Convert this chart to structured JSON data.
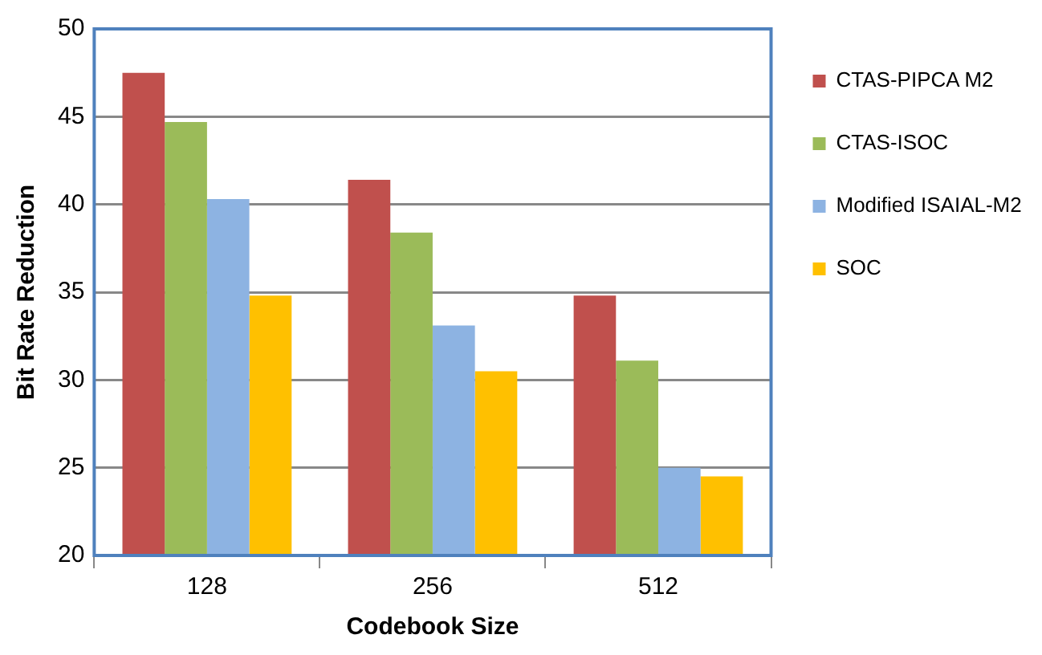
{
  "chart_data": {
    "type": "bar",
    "xlabel": "Codebook Size",
    "ylabel": "Bit Rate Reduction",
    "categories": [
      "128",
      "256",
      "512"
    ],
    "series": [
      {
        "name": "CTAS-PIPCA M2",
        "color": "#c0504d",
        "values": [
          47.5,
          41.4,
          34.8
        ]
      },
      {
        "name": "CTAS-ISOC",
        "color": "#9bbb59",
        "values": [
          44.7,
          38.4,
          31.1
        ]
      },
      {
        "name": "Modified ISAIAL-M2",
        "color": "#8db3e2",
        "values": [
          40.3,
          33.1,
          25.0
        ]
      },
      {
        "name": "SOC",
        "color": "#ffc000",
        "values": [
          34.8,
          30.5,
          24.5
        ]
      }
    ],
    "ylim": [
      20,
      50
    ],
    "yticks": [
      20,
      25,
      30,
      35,
      40,
      45,
      50
    ],
    "grid": "y",
    "legend": "right"
  }
}
